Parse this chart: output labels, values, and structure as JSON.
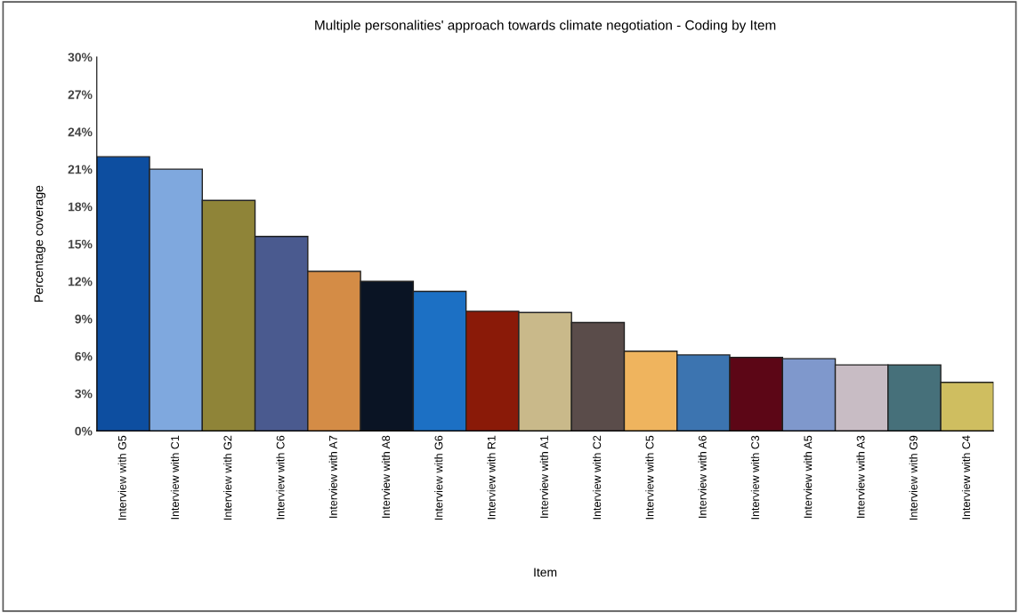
{
  "chart_data": {
    "type": "bar",
    "title": "Multiple personalities' approach towards climate negotiation - Coding by Item",
    "xlabel": "Item",
    "ylabel": "Percentage coverage",
    "categories": [
      "Interview with G5",
      "Interview with C1",
      "Interview with G2",
      "Interview with C6",
      "Interview with A7",
      "Interview with A8",
      "Interview with G6",
      "Interview with R1",
      "Interview with A1",
      "Interview with C2",
      "Interview with C5",
      "Interview with A6",
      "Interview with C3",
      "Interview with A5",
      "Interview with A3",
      "Interview with G9",
      "Interview with C4"
    ],
    "values": [
      22.0,
      21.0,
      18.5,
      15.6,
      12.8,
      12.0,
      11.2,
      9.6,
      9.5,
      8.7,
      6.4,
      6.1,
      5.9,
      5.8,
      5.3,
      5.3,
      3.9
    ],
    "colors": [
      "#0d4ea0",
      "#7fa8de",
      "#8f8438",
      "#4a5a8f",
      "#d48c46",
      "#0a1424",
      "#1c70c4",
      "#8a1a08",
      "#c9b98a",
      "#5a4c4a",
      "#efb45e",
      "#3c74b0",
      "#5c0616",
      "#7f98cc",
      "#c8bcc4",
      "#46707a",
      "#cfbe60"
    ],
    "ylim": [
      0,
      30
    ],
    "yticks": [
      {
        "value": 0,
        "label": "0%"
      },
      {
        "value": 3,
        "label": "3%"
      },
      {
        "value": 6,
        "label": "6%"
      },
      {
        "value": 9,
        "label": "9%"
      },
      {
        "value": 12,
        "label": "12%"
      },
      {
        "value": 15,
        "label": "15%"
      },
      {
        "value": 18,
        "label": "18%"
      },
      {
        "value": 21,
        "label": "21%"
      },
      {
        "value": 24,
        "label": "24%"
      },
      {
        "value": 27,
        "label": "27%"
      },
      {
        "value": 30,
        "label": "30%"
      }
    ],
    "grid": false,
    "legend": false
  }
}
